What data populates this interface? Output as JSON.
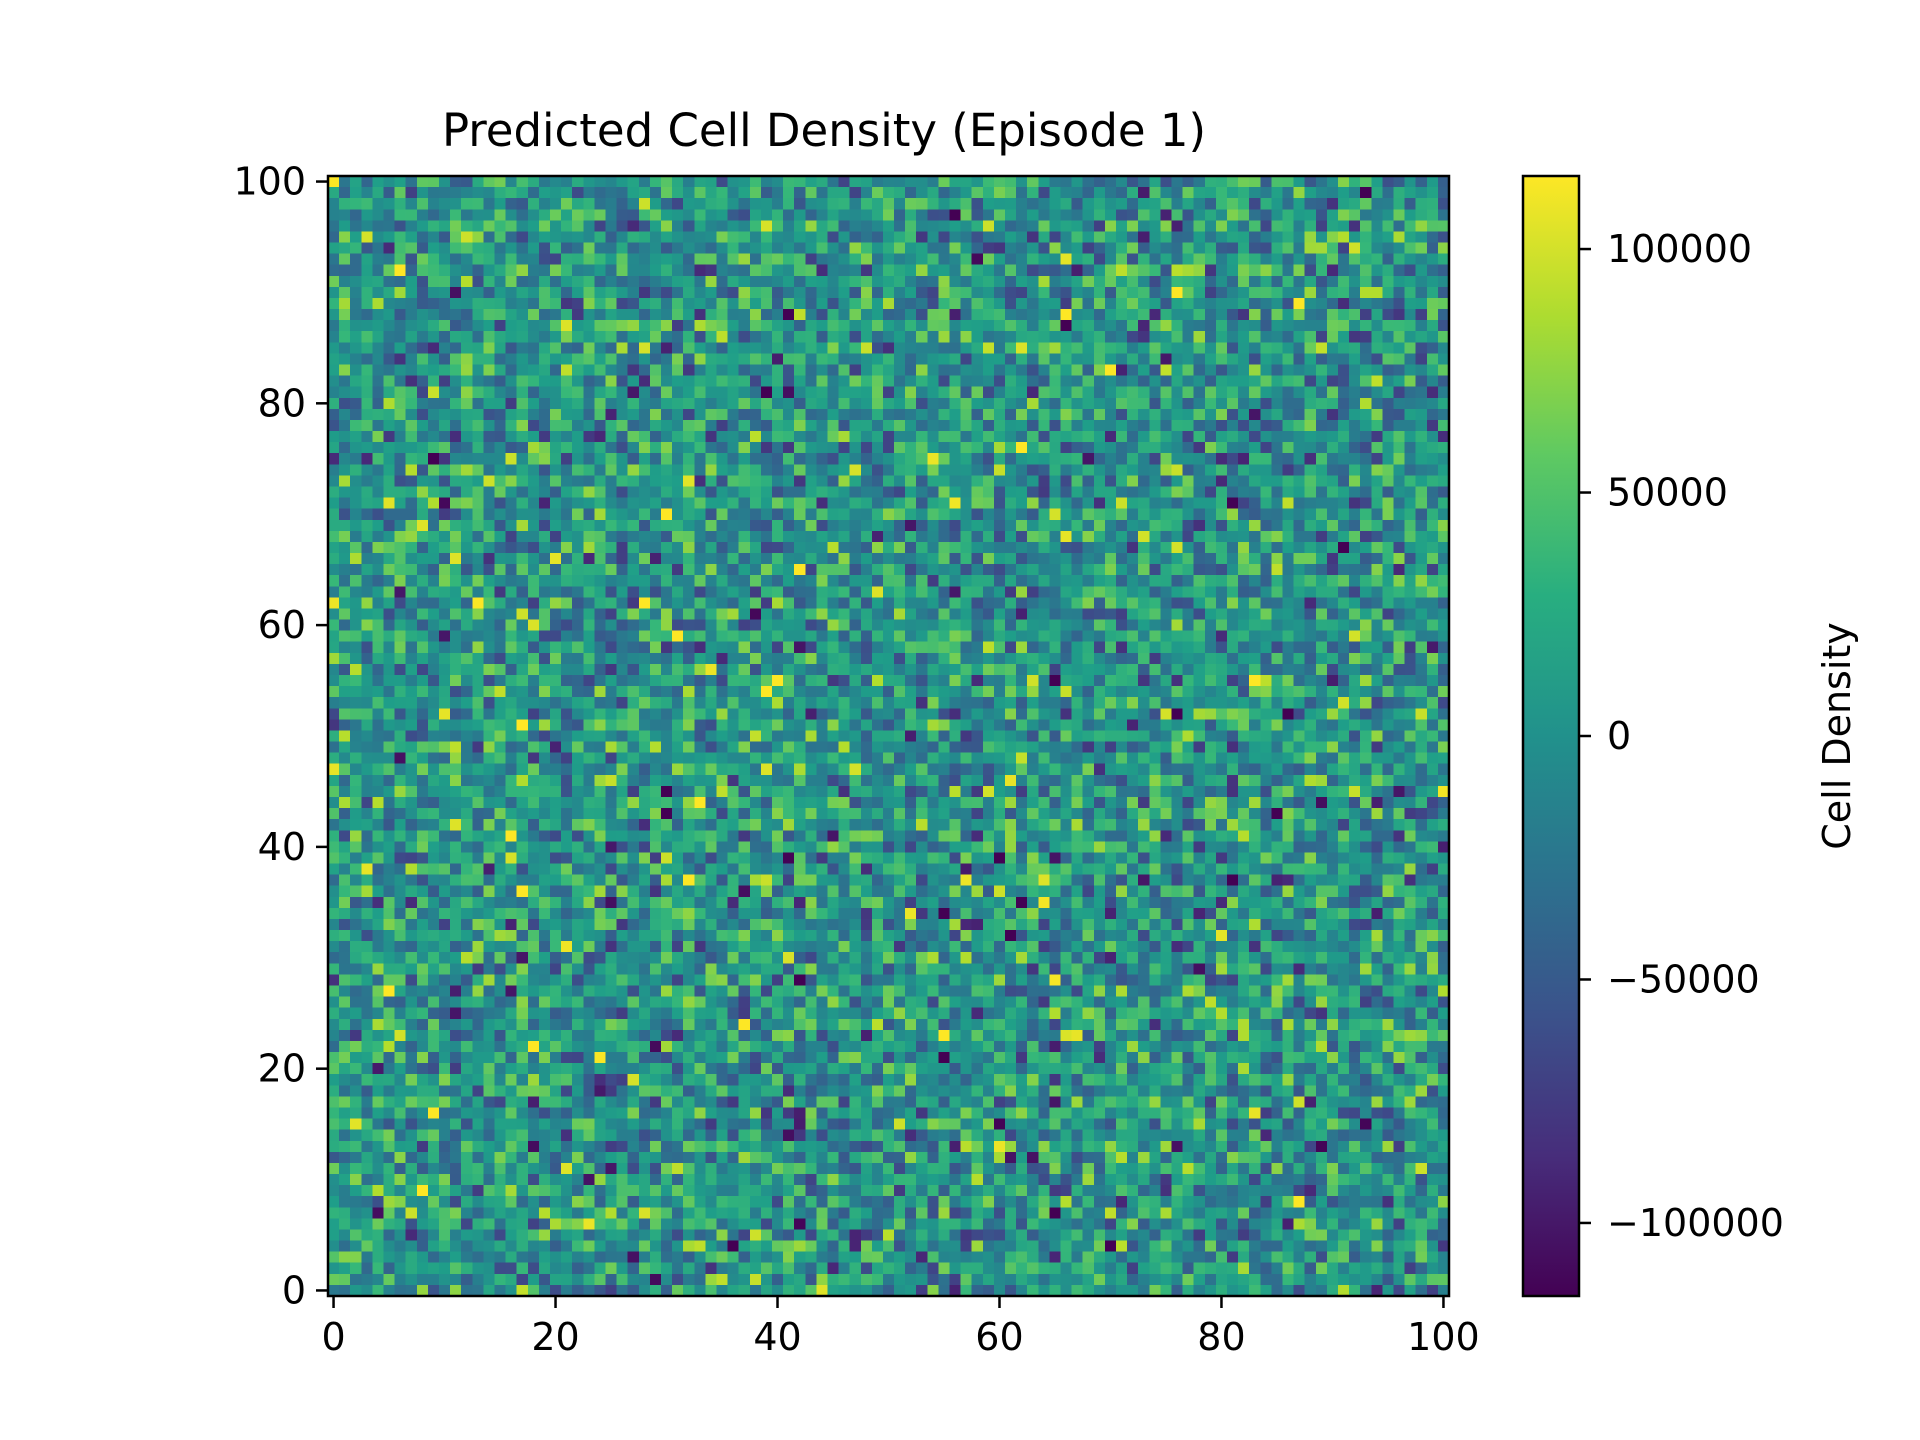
{
  "chart_data": {
    "type": "heatmap",
    "title": "Predicted Cell Density (Episode 1)",
    "xlabel": "",
    "ylabel": "",
    "colorbar_label": "Cell Density",
    "grid_size": [
      101,
      101
    ],
    "x_range": [
      -0.5,
      100.5
    ],
    "y_range": [
      -0.5,
      100.5
    ],
    "x_ticks": [
      0,
      20,
      40,
      60,
      80,
      100
    ],
    "x_tick_labels": [
      "0",
      "20",
      "40",
      "60",
      "80",
      "100"
    ],
    "y_ticks": [
      0,
      20,
      40,
      60,
      80,
      100
    ],
    "y_tick_labels": [
      "0",
      "20",
      "40",
      "60",
      "80",
      "100"
    ],
    "colormap": "viridis",
    "value_range": [
      -115000,
      115000
    ],
    "colorbar_ticks": [
      -100000,
      -50000,
      0,
      50000,
      100000
    ],
    "colorbar_tick_labels": [
      "−100000",
      "−50000",
      "0",
      "50000",
      "100000"
    ],
    "value_distribution": "approximately random noise centered near 0 with typical magnitude about 40000",
    "grid": false,
    "legend": "none"
  }
}
